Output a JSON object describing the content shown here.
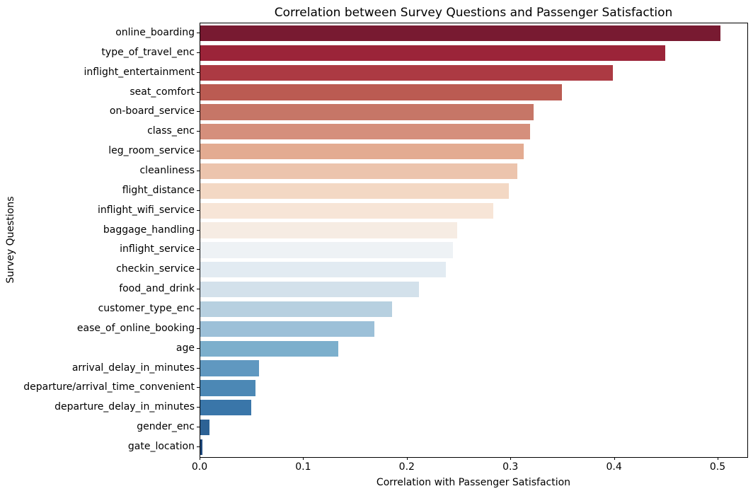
{
  "chart_data": {
    "type": "bar",
    "orientation": "horizontal",
    "title": "Correlation between Survey Questions and Passenger Satisfaction",
    "xlabel": "Correlation with Passenger Satisfaction",
    "ylabel": "Survey Questions",
    "categories": [
      "online_boarding",
      "type_of_travel_enc",
      "inflight_entertainment",
      "seat_comfort",
      "on-board_service",
      "class_enc",
      "leg_room_service",
      "cleanliness",
      "flight_distance",
      "inflight_wifi_service",
      "baggage_handling",
      "inflight_service",
      "checkin_service",
      "food_and_drink",
      "customer_type_enc",
      "ease_of_online_booking",
      "age",
      "arrival_delay_in_minutes",
      "departure/arrival_time_convenient",
      "departure_delay_in_minutes",
      "gender_enc",
      "gate_location"
    ],
    "values": [
      0.502,
      0.449,
      0.398,
      0.349,
      0.322,
      0.318,
      0.312,
      0.306,
      0.298,
      0.283,
      0.248,
      0.244,
      0.237,
      0.211,
      0.185,
      0.168,
      0.133,
      0.057,
      0.053,
      0.049,
      0.009,
      0.002
    ],
    "bar_colors": [
      "#781a31",
      "#9b2439",
      "#ac3a43",
      "#bb5b52",
      "#c67667",
      "#d58f7c",
      "#e3ab91",
      "#ecc4ad",
      "#f3d8c4",
      "#f7e5d7",
      "#f6ece3",
      "#eef2f5",
      "#e2ebf2",
      "#d3e1eb",
      "#b7d0e0",
      "#9cc0d8",
      "#7cafcc",
      "#6098c0",
      "#4c88b5",
      "#3a76a9",
      "#2d6295",
      "#20497b"
    ],
    "xlim": [
      0,
      0.528
    ],
    "xticks": [
      0.0,
      0.1,
      0.2,
      0.3,
      0.4,
      0.5
    ],
    "xtick_labels": [
      "0.0",
      "0.1",
      "0.2",
      "0.3",
      "0.4",
      "0.5"
    ],
    "grid": false,
    "legend": false
  }
}
